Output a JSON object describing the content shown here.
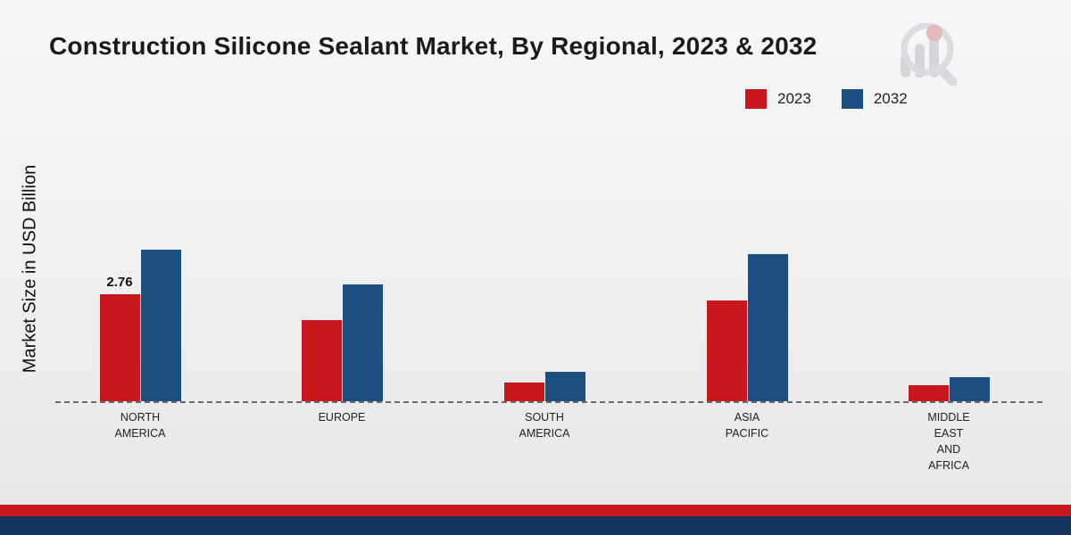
{
  "page": {
    "title": "Construction Silicone Sealant Market, By Regional, 2023 & 2032",
    "ylabel": "Market Size in USD Billion"
  },
  "legend": [
    {
      "label": "2023",
      "color": "#c9181d"
    },
    {
      "label": "2032",
      "color": "#1c4e80"
    }
  ],
  "colors": {
    "series_2023": "#c9181d",
    "series_2032": "#1c4e80",
    "footer_red_band": "#c9181d",
    "footer_navy_band": "#16335f",
    "baseline": "#6a6a6a"
  },
  "chart_data": {
    "type": "bar",
    "title": "Construction Silicone Sealant Market, By Regional, 2023 & 2032",
    "xlabel": "",
    "ylabel": "Market Size in USD Billion",
    "categories": [
      "NORTH AMERICA",
      "EUROPE",
      "SOUTH AMERICA",
      "ASIA PACIFIC",
      "MIDDLE EAST AND AFRICA"
    ],
    "category_lines": [
      [
        "NORTH",
        "AMERICA"
      ],
      [
        "EUROPE"
      ],
      [
        "SOUTH",
        "AMERICA"
      ],
      [
        "ASIA",
        "PACIFIC"
      ],
      [
        "MIDDLE",
        "EAST",
        "AND",
        "AFRICA"
      ]
    ],
    "series": [
      {
        "name": "2023",
        "color": "#c9181d",
        "values": [
          2.76,
          2.1,
          0.48,
          2.6,
          0.42
        ]
      },
      {
        "name": "2032",
        "color": "#1c4e80",
        "values": [
          3.91,
          3.0,
          0.75,
          3.8,
          0.62
        ]
      }
    ],
    "annotations": [
      {
        "series": "2023",
        "category": "NORTH AMERICA",
        "text": "2.76"
      }
    ],
    "ylim": [
      0,
      4.5
    ],
    "grid": false,
    "baseline_style": "dashed",
    "legend_position": "top-right"
  }
}
